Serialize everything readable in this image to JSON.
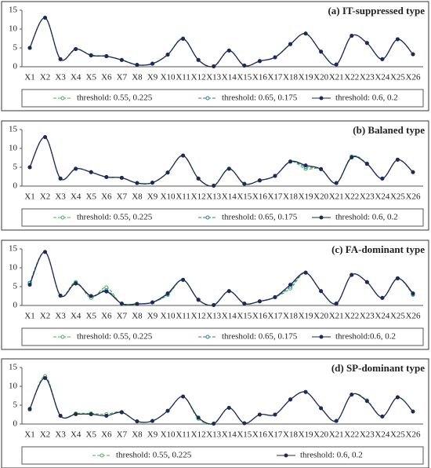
{
  "chart_data": [
    {
      "type": "line",
      "title": "(a) IT-suppressed type",
      "categories": [
        "X1",
        "X2",
        "X3",
        "X4",
        "X5",
        "X6",
        "X7",
        "X8",
        "X9",
        "X10",
        "X11",
        "X12",
        "X13",
        "X14",
        "X15",
        "X16",
        "X17",
        "X18",
        "X19",
        "X20",
        "X21",
        "X22",
        "X23",
        "X24",
        "X25",
        "X26"
      ],
      "ylim": [
        0,
        15
      ],
      "yticks": [
        0,
        5,
        10,
        15
      ],
      "series": [
        {
          "name": "threshold: 0.55, 0.225",
          "color": "#4caf50",
          "line_style": "dashed",
          "marker": "open",
          "values": [
            5,
            13,
            2,
            4.7,
            3,
            2.8,
            1.8,
            0.5,
            0.8,
            3.2,
            7.5,
            1.8,
            0.1,
            4.3,
            0.3,
            1.5,
            2.5,
            6,
            8.8,
            4,
            0.6,
            8.2,
            6.3,
            2,
            7.3,
            3.3
          ]
        },
        {
          "name": "threshold: 0.65, 0.175",
          "color": "#2a7f8f",
          "line_style": "dashed",
          "marker": "open",
          "values": [
            5,
            13,
            2,
            4.7,
            3.1,
            2.8,
            1.8,
            0.5,
            0.8,
            3.2,
            7.5,
            1.8,
            0.1,
            4.3,
            0.3,
            1.5,
            2.5,
            6,
            8.8,
            4,
            0.6,
            8.2,
            6.3,
            2,
            7.3,
            3.3
          ]
        },
        {
          "name": "threshold: 0.6, 0.2",
          "color": "#1f2a5a",
          "line_style": "solid",
          "marker": "filled",
          "values": [
            5,
            13,
            2,
            4.7,
            3,
            2.8,
            1.8,
            0.5,
            0.8,
            3.2,
            7.4,
            1.8,
            0.1,
            4.3,
            0.3,
            1.5,
            2.5,
            6,
            8.8,
            4,
            0.6,
            8.2,
            6.3,
            2,
            7.3,
            3.3
          ]
        }
      ]
    },
    {
      "type": "line",
      "title": "(b) Balaned type",
      "categories": [
        "X1",
        "X2",
        "X3",
        "X4",
        "X5",
        "X6",
        "X7",
        "X8",
        "X9",
        "X10",
        "X11",
        "X12",
        "X13",
        "X14",
        "X15",
        "X16",
        "X17",
        "X18",
        "X19",
        "X20",
        "X21",
        "X22",
        "X23",
        "X24",
        "X25",
        "X26"
      ],
      "ylim": [
        0,
        15
      ],
      "yticks": [
        0,
        5,
        10,
        15
      ],
      "series": [
        {
          "name": "threshold: 0.55, 0.225",
          "color": "#4caf50",
          "line_style": "dashed",
          "marker": "open",
          "values": [
            5,
            13,
            2,
            4.6,
            3.7,
            2.4,
            2.2,
            0.8,
            0.9,
            3.6,
            8.1,
            2,
            0.1,
            4.6,
            0.6,
            1.5,
            2.7,
            6.5,
            4.6,
            4.5,
            0.8,
            7.8,
            6,
            2,
            7,
            3.7
          ]
        },
        {
          "name": "threshold: 0.65, 0.175",
          "color": "#2a7f8f",
          "line_style": "dashed",
          "marker": "open",
          "values": [
            5,
            13,
            2,
            4.6,
            3.7,
            2.4,
            2.2,
            0.8,
            0.9,
            3.6,
            8.1,
            2,
            0.1,
            4.6,
            0.6,
            1.5,
            2.7,
            6.5,
            5.1,
            4.5,
            0.8,
            7.8,
            5.9,
            2,
            7,
            3.7
          ]
        },
        {
          "name": "threshold: 0.6, 0.2",
          "color": "#1f2a5a",
          "line_style": "solid",
          "marker": "filled",
          "values": [
            5,
            13,
            2,
            4.6,
            3.7,
            2.4,
            2.2,
            0.8,
            0.9,
            3.6,
            8.1,
            2,
            0.1,
            4.6,
            0.6,
            1.5,
            2.7,
            6.5,
            5.5,
            4.5,
            0.8,
            7.6,
            5.9,
            2,
            7,
            3.7
          ]
        }
      ]
    },
    {
      "type": "line",
      "title": "(c) FA-dominant type",
      "categories": [
        "X1",
        "X2",
        "X3",
        "X4",
        "X5",
        "X6",
        "X7",
        "X8",
        "X9",
        "X10",
        "X11",
        "X12",
        "X13",
        "X14",
        "X15",
        "X16",
        "X17",
        "X18",
        "X19",
        "X20",
        "X21",
        "X22",
        "X23",
        "X24",
        "X25",
        "X26"
      ],
      "ylim": [
        0,
        15
      ],
      "yticks": [
        0,
        5,
        10,
        15
      ],
      "series": [
        {
          "name": "threshold: 0.55, 0.225",
          "color": "#4caf50",
          "line_style": "dashed",
          "marker": "open",
          "values": [
            6,
            14.2,
            2.6,
            6.2,
            2,
            4.8,
            0.3,
            0.4,
            0.8,
            2.8,
            6.8,
            1.5,
            0.1,
            3.8,
            0.5,
            1.1,
            2.2,
            4.5,
            8.7,
            3.8,
            0.5,
            8.1,
            6.2,
            2,
            7.2,
            2.8
          ]
        },
        {
          "name": "threshold: 0.65, 0.175",
          "color": "#2a7f8f",
          "line_style": "dashed",
          "marker": "open",
          "values": [
            6,
            14.2,
            2.6,
            6,
            2.5,
            4,
            0.5,
            0.4,
            0.8,
            3,
            6.8,
            1.5,
            0.1,
            3.8,
            0.5,
            1.1,
            2.2,
            5,
            8.7,
            3.8,
            0.5,
            8.1,
            6.2,
            2,
            7.2,
            3
          ]
        },
        {
          "name": "threshold:0.6, 0.2",
          "color": "#1f2a5a",
          "line_style": "solid",
          "marker": "filled",
          "values": [
            5.5,
            14.2,
            2.6,
            5.8,
            2.5,
            3.7,
            0.5,
            0.4,
            0.8,
            3.2,
            6.8,
            1.5,
            0.1,
            3.8,
            0.5,
            1.1,
            2.2,
            5.5,
            8.7,
            3.8,
            0.5,
            8.1,
            6.2,
            2,
            7.2,
            3.2
          ]
        }
      ]
    },
    {
      "type": "line",
      "title": "(d) SP-dominant type",
      "categories": [
        "X1",
        "X2",
        "X3",
        "X4",
        "X5",
        "X6",
        "X7",
        "X8",
        "X9",
        "X10",
        "X11",
        "X12",
        "X13",
        "X14",
        "X15",
        "X16",
        "X17",
        "X18",
        "X19",
        "X20",
        "X21",
        "X22",
        "X23",
        "X24",
        "X25",
        "X26"
      ],
      "ylim": [
        0,
        15
      ],
      "yticks": [
        0,
        5,
        10,
        15
      ],
      "series": [
        {
          "name": "threshold: 0.55, 0.225",
          "color": "#4caf50",
          "line_style": "dashed",
          "marker": "open",
          "values": [
            3.8,
            12.7,
            2.2,
            2.8,
            2.8,
            2.6,
            3.2,
            0.7,
            0.8,
            3.5,
            7.3,
            1.4,
            0.1,
            4.3,
            0.2,
            2.5,
            2.5,
            6.5,
            8.5,
            4.2,
            0.8,
            7.8,
            6.3,
            2,
            7.1,
            3.3
          ]
        },
        {
          "name": "threshold: 0.6, 0.2",
          "color": "#1f2a5a",
          "line_style": "solid",
          "marker": "filled",
          "values": [
            4,
            12.2,
            2.2,
            2.6,
            2.6,
            2.2,
            3.1,
            0.7,
            0.8,
            3.5,
            7.3,
            1.7,
            0.1,
            4.3,
            0.2,
            2.5,
            2.5,
            6.5,
            8.5,
            4.2,
            0.8,
            7.8,
            6.1,
            2,
            7.1,
            3.3
          ]
        }
      ]
    }
  ]
}
